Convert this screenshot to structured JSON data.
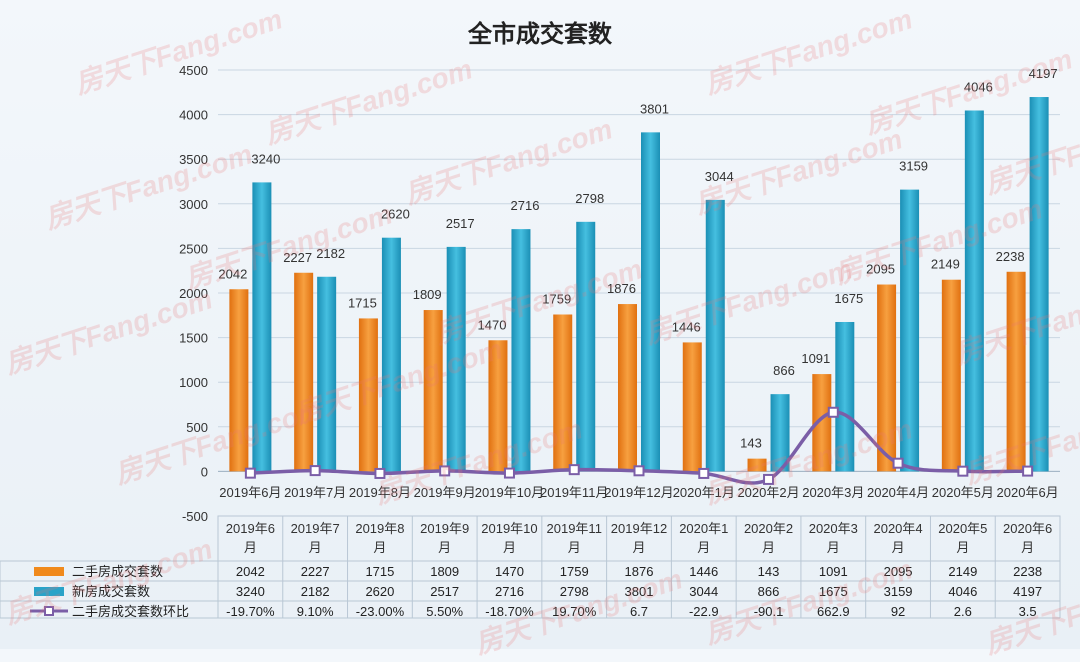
{
  "chart_data": {
    "type": "bar",
    "title": "全市成交套数",
    "categories": [
      "2019年6月",
      "2019年7月",
      "2019年8月",
      "2019年9月",
      "2019年10月",
      "2019年11月",
      "2019年12月",
      "2020年1月",
      "2020年2月",
      "2020年3月",
      "2020年4月",
      "2020年5月",
      "2020年6月"
    ],
    "table_headers": [
      [
        "2019年6",
        "月"
      ],
      [
        "2019年7",
        "月"
      ],
      [
        "2019年8",
        "月"
      ],
      [
        "2019年9",
        "月"
      ],
      [
        "2019年10",
        "月"
      ],
      [
        "2019年11",
        "月"
      ],
      [
        "2019年12",
        "月"
      ],
      [
        "2020年1",
        "月"
      ],
      [
        "2020年2",
        "月"
      ],
      [
        "2020年3",
        "月"
      ],
      [
        "2020年4",
        "月"
      ],
      [
        "2020年5",
        "月"
      ],
      [
        "2020年6",
        "月"
      ]
    ],
    "ylim": [
      -500,
      4500
    ],
    "yticks": [
      -500,
      0,
      500,
      1000,
      1500,
      2000,
      2500,
      3000,
      3500,
      4000,
      4500
    ],
    "series": [
      {
        "name": "二手房成交套数",
        "type": "bar",
        "color": "#f08a1c",
        "values": [
          2042,
          2227,
          1715,
          1809,
          1470,
          1759,
          1876,
          1446,
          143,
          1091,
          2095,
          2149,
          2238
        ]
      },
      {
        "name": "新房成交套数",
        "type": "bar",
        "color": "#2aa3c8",
        "values": [
          3240,
          2182,
          2620,
          2517,
          2716,
          2798,
          3801,
          3044,
          866,
          1675,
          3159,
          4046,
          4197
        ]
      },
      {
        "name": "二手房成交套数环比",
        "type": "line",
        "color": "#7b5ea7",
        "values": [
          -19.7,
          9.1,
          -23.0,
          5.5,
          -18.7,
          19.7,
          6.7,
          -22.9,
          -90.1,
          662.9,
          92,
          2.6,
          3.5
        ],
        "labels": [
          "-19.70%",
          "9.10%",
          "-23.00%",
          "5.50%",
          "-18.70%",
          "19.70%",
          "6.7",
          "-22.9",
          "-90.1",
          "662.9",
          "92",
          "2.6",
          "3.5"
        ]
      }
    ]
  },
  "watermark": "房天下Fang.com"
}
